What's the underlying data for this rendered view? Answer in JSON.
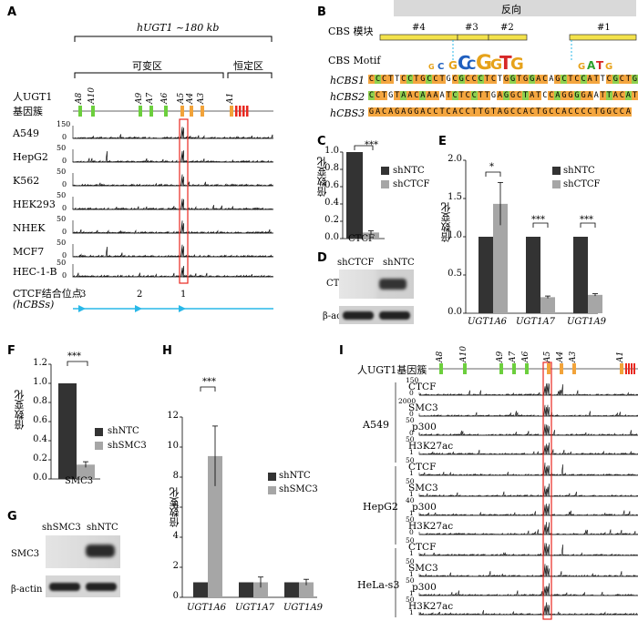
{
  "panels": {
    "A": "A",
    "B": "B",
    "C": "C",
    "D": "D",
    "E": "E",
    "F": "F",
    "G": "G",
    "H": "H",
    "I": "I"
  },
  "A": {
    "gene_span": "hUGT1 ~180 kb",
    "variable_region": "可变区",
    "constant_region": "恒定区",
    "cluster_label_1": "人UGT1",
    "cluster_label_2": "基因簇",
    "gene_labels": [
      "A8",
      "A10",
      "A9",
      "A7",
      "A6",
      "A5",
      "A4",
      "A3",
      "A1"
    ],
    "tracks": [
      {
        "name": "A549",
        "scale_top": "150",
        "scale_bottom": "0"
      },
      {
        "name": "HepG2",
        "scale_top": "50",
        "scale_bottom": "0"
      },
      {
        "name": "K562",
        "scale_top": "50",
        "scale_bottom": "0"
      },
      {
        "name": "HEK293",
        "scale_top": "50",
        "scale_bottom": "0"
      },
      {
        "name": "NHEK",
        "scale_top": "50",
        "scale_bottom": "0"
      },
      {
        "name": "MCF7",
        "scale_top": "50",
        "scale_bottom": "0"
      },
      {
        "name": "HEC-1-B",
        "scale_top": "50",
        "scale_bottom": "0"
      }
    ],
    "ctcf_sites_label_1": "CTCF结合位点",
    "ctcf_sites_label_2": "(hCBSs)",
    "site_numbers": [
      "3",
      "2",
      "1"
    ]
  },
  "B": {
    "header": "反向",
    "module_label": "CBS 模块",
    "modules": [
      "#4",
      "#3",
      "#2",
      "#1"
    ],
    "motif_label": "CBS Motif",
    "rows": [
      {
        "name": "hCBS1",
        "seq": "CCCTTCCTGCCTGCGCCCTCTGGTGGACAGCTCCATTCGCTG"
      },
      {
        "name": "hCBS2",
        "seq": "CCTGTAACAAAATCTCCTTGAGGCTATCCAGGGGAATTACAT"
      },
      {
        "name": "hCBS3",
        "seq": "GACAGAGGACCTCACCTTGTAGCCACTGCCACCCCTGGCCA"
      }
    ]
  },
  "C": {
    "ylabel": "倍数变化",
    "xlabel": "CTCF",
    "sig": "***",
    "legend": [
      "shNTC",
      "shCTCF"
    ],
    "yticks": [
      "0.0",
      "0.2",
      "0.4",
      "0.6",
      "0.8",
      "1.0"
    ]
  },
  "D": {
    "lane1": "shCTCF",
    "lane2": "shNTC",
    "row1": "CTCF",
    "row2": "β-actin"
  },
  "E": {
    "ylabel": "倍数变化",
    "legend": [
      "shNTC",
      "shCTCF"
    ],
    "yticks": [
      "0.0",
      "0.5",
      "1.0",
      "1.5",
      "2.0"
    ],
    "categories": [
      "UGT1A6",
      "UGT1A7",
      "UGT1A9"
    ],
    "sig": [
      "*",
      "***",
      "***"
    ]
  },
  "F": {
    "ylabel": "倍数变化",
    "xlabel": "SMC3",
    "sig": "***",
    "legend": [
      "shNTC",
      "shSMC3"
    ],
    "yticks": [
      "0.0",
      "0.2",
      "0.4",
      "0.6",
      "0.8",
      "1.0",
      "1.2"
    ]
  },
  "G": {
    "lane1": "shSMC3",
    "lane2": "shNTC",
    "row1": "SMC3",
    "row2": "β-actin"
  },
  "H": {
    "ylabel": "倍数变化",
    "legend": [
      "shNTC",
      "shSMC3"
    ],
    "yticks": [
      "0",
      "2",
      "4",
      "6",
      "8",
      "10",
      "12"
    ],
    "categories": [
      "UGT1A6",
      "UGT1A7",
      "UGT1A9"
    ],
    "sig": "***"
  },
  "I": {
    "cluster_label": "人UGT1基因簇",
    "gene_labels": [
      "A8",
      "A10",
      "A9",
      "A7",
      "A6",
      "A5",
      "A4",
      "A3",
      "A1"
    ],
    "cells": [
      "A549",
      "HepG2",
      "HeLa-s3"
    ],
    "marks": [
      "CTCF",
      "SMC3",
      "p300",
      "H3K27ac"
    ],
    "scales": [
      [
        "150",
        "2000",
        "50",
        "50"
      ],
      [
        "50",
        "50",
        "40",
        "50"
      ],
      [
        "50",
        "50",
        "50",
        "50"
      ]
    ],
    "zero": [
      "0",
      "0",
      "0",
      "1",
      "1",
      "1",
      "1",
      "0",
      "1",
      "1",
      "1",
      "1"
    ]
  },
  "chart_data": [
    {
      "type": "bar",
      "title": "",
      "ylabel": "倍数变化",
      "categories": [
        "CTCF"
      ],
      "series": [
        {
          "name": "shNTC",
          "values": [
            1.0
          ]
        },
        {
          "name": "shCTCF",
          "values": [
            0.07
          ]
        }
      ],
      "ylim": [
        0,
        1.0
      ]
    },
    {
      "type": "bar",
      "title": "",
      "ylabel": "倍数变化",
      "categories": [
        "UGT1A6",
        "UGT1A7",
        "UGT1A9"
      ],
      "series": [
        {
          "name": "shNTC",
          "values": [
            1.0,
            1.0,
            1.0
          ]
        },
        {
          "name": "shCTCF",
          "values": [
            1.43,
            0.21,
            0.24
          ]
        }
      ],
      "ylim": [
        0,
        2.0
      ]
    },
    {
      "type": "bar",
      "title": "",
      "ylabel": "倍数变化",
      "categories": [
        "SMC3"
      ],
      "series": [
        {
          "name": "shNTC",
          "values": [
            1.0
          ]
        },
        {
          "name": "shSMC3",
          "values": [
            0.15
          ]
        }
      ],
      "ylim": [
        0,
        1.2
      ]
    },
    {
      "type": "bar",
      "title": "",
      "ylabel": "倍数变化",
      "categories": [
        "UGT1A6",
        "UGT1A7",
        "UGT1A9"
      ],
      "series": [
        {
          "name": "shNTC",
          "values": [
            1.0,
            1.0,
            1.0
          ]
        },
        {
          "name": "shSMC3",
          "values": [
            9.4,
            1.0,
            1.0
          ]
        }
      ],
      "ylim": [
        0,
        12
      ]
    }
  ],
  "colors": {
    "green": "#6ccf3d",
    "orange": "#f2a33a",
    "red": "#e8271e",
    "black_bar": "#333333",
    "gray_bar": "#a6a6a6",
    "highlight": "#e8271e",
    "cyan": "#29b8e8"
  }
}
